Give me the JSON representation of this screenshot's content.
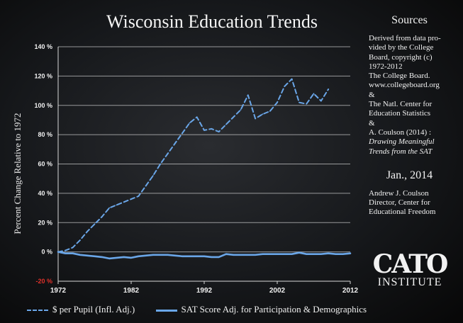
{
  "sidebar": {
    "heading": "Sources",
    "lines": [
      "Derived from data pro-",
      "vided by the College",
      "Board, copyright (c)",
      "1972-2012",
      "The College Board.",
      "www.collegeboard.org",
      "&",
      "The Natl. Center for",
      "Education Statistics",
      "&",
      "A. Coulson (2014) :"
    ],
    "italic_lines": [
      "Drawing Meaningful",
      "Trends from the SAT"
    ],
    "date": "Jan., 2014",
    "author_lines": [
      "Andrew J. Coulson",
      "Director, Center for",
      "Educational Freedom"
    ]
  },
  "logo": {
    "main": "CATO",
    "sub": "INSTITUTE"
  },
  "colors": {
    "series": "#6aa6e8",
    "negative_tick": "#e0312a",
    "grid": "#ffffff",
    "background": "#16181b"
  },
  "chart_data": {
    "type": "line",
    "title": "Wisconsin Education Trends",
    "ylabel": "Percent Change Relative to 1972",
    "xlabel": "",
    "xlim": [
      1972,
      2012
    ],
    "ylim": [
      -20,
      140
    ],
    "grid": true,
    "legend_position": "bottom",
    "x_ticks": [
      "1972",
      "1982",
      "1992",
      "2002",
      "2012"
    ],
    "y_ticks": [
      "140 %",
      "120 %",
      "100 %",
      "80 %",
      "60 %",
      "40 %",
      "20 %",
      "0 %",
      "-20 %"
    ],
    "y_tick_values": [
      140,
      120,
      100,
      80,
      60,
      40,
      20,
      0,
      -20
    ],
    "series": [
      {
        "name": "$ per Pupil (Infl. Adj.)",
        "style": "dashed",
        "x": [
          1972,
          1973,
          1974,
          1975,
          1976,
          1977,
          1978,
          1979,
          1980,
          1981,
          1982,
          1983,
          1984,
          1985,
          1986,
          1987,
          1988,
          1989,
          1990,
          1991,
          1992,
          1993,
          1994,
          1995,
          1996,
          1997,
          1998,
          1999,
          2000,
          2001,
          2002,
          2003,
          2004,
          2005,
          2006,
          2007,
          2008,
          2009
        ],
        "y": [
          0,
          1,
          3,
          8,
          14,
          19,
          24,
          30,
          32,
          34,
          36,
          38,
          45,
          52,
          60,
          67,
          74,
          81,
          88,
          92,
          83,
          84,
          82,
          87,
          92,
          97,
          107,
          91,
          94,
          96,
          102,
          113,
          118,
          102,
          101,
          108,
          103,
          111
        ]
      },
      {
        "name": "SAT Score Adj. for Participation & Demographics",
        "style": "solid",
        "x": [
          1972,
          1973,
          1974,
          1975,
          1976,
          1977,
          1978,
          1979,
          1980,
          1981,
          1982,
          1983,
          1984,
          1985,
          1986,
          1987,
          1988,
          1989,
          1990,
          1991,
          1992,
          1993,
          1994,
          1995,
          1996,
          1997,
          1998,
          1999,
          2000,
          2001,
          2002,
          2003,
          2004,
          2005,
          2006,
          2007,
          2008,
          2009,
          2010,
          2011,
          2012
        ],
        "y": [
          0,
          -1,
          -1,
          -2,
          -2.5,
          -3,
          -3.5,
          -4.5,
          -4,
          -3.5,
          -4,
          -3,
          -2.5,
          -2,
          -2,
          -2,
          -2.5,
          -3,
          -3,
          -3,
          -3,
          -3.5,
          -3.5,
          -1.5,
          -2,
          -2,
          -2,
          -2,
          -1.5,
          -1.5,
          -1.5,
          -1.5,
          -1.5,
          -0.5,
          -1.5,
          -1.5,
          -1.5,
          -1,
          -1.5,
          -1.5,
          -1
        ]
      }
    ]
  }
}
